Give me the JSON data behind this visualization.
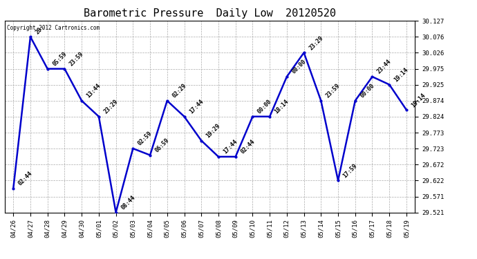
{
  "title": "Barometric Pressure  Daily Low  20120520",
  "copyright": "Copyright 2012 Cartronics.com",
  "x_labels": [
    "04/26",
    "04/27",
    "04/28",
    "04/29",
    "04/30",
    "05/01",
    "05/02",
    "05/03",
    "05/04",
    "05/05",
    "05/06",
    "05/07",
    "05/08",
    "05/09",
    "05/10",
    "05/11",
    "05/12",
    "05/13",
    "05/14",
    "05/15",
    "05/16",
    "05/17",
    "05/18",
    "05/19"
  ],
  "y_values": [
    29.597,
    30.076,
    29.975,
    29.975,
    29.874,
    29.824,
    29.521,
    29.723,
    29.702,
    29.874,
    29.824,
    29.748,
    29.697,
    29.697,
    29.824,
    29.824,
    29.95,
    30.026,
    29.874,
    29.622,
    29.874,
    29.95,
    29.925,
    29.845
  ],
  "point_labels": [
    "02:44",
    "20:",
    "05:59",
    "23:59",
    "13:44",
    "23:29",
    "08:44",
    "02:59",
    "06:59",
    "02:29",
    "17:44",
    "19:29",
    "17:44",
    "02:44",
    "00:00",
    "18:14",
    "00:00",
    "23:29",
    "23:59",
    "17:59",
    "00:00",
    "23:44",
    "19:14",
    "19:14"
  ],
  "line_color": "#0000CC",
  "marker_color": "#0000CC",
  "background_color": "#FFFFFF",
  "grid_color": "#AAAAAA",
  "ylim_min": 29.521,
  "ylim_max": 30.127,
  "ytick_values": [
    29.521,
    29.571,
    29.622,
    29.672,
    29.723,
    29.773,
    29.824,
    29.874,
    29.925,
    29.975,
    30.026,
    30.076,
    30.127
  ],
  "title_fontsize": 11,
  "label_fontsize": 6,
  "tick_fontsize": 6.5,
  "copyright_fontsize": 5.5
}
